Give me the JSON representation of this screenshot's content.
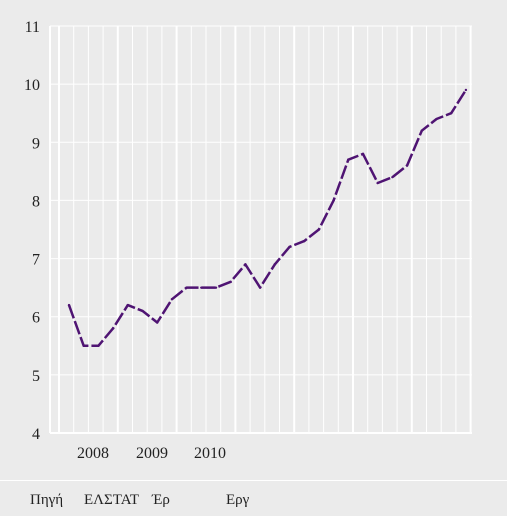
{
  "chart_data": {
    "type": "line",
    "title": "",
    "xlabel": "",
    "ylabel": "",
    "ylim": [
      4,
      11
    ],
    "yticks": [
      4,
      5,
      6,
      7,
      8,
      9,
      10,
      11
    ],
    "year_labels": [
      "2008",
      "2009",
      "2010"
    ],
    "grid": true,
    "line_color": "#4f1473",
    "series": [
      {
        "values": [
          6.2,
          5.5,
          5.5,
          5.8,
          6.2,
          6.1,
          5.9,
          6.3,
          6.5,
          6.5,
          6.5,
          6.6,
          6.9,
          6.5,
          6.9,
          7.2,
          7.3,
          7.5,
          8.0,
          8.7,
          8.8,
          8.3,
          8.4,
          8.6,
          9.2,
          9.4,
          9.5,
          9.9
        ]
      }
    ]
  },
  "source": {
    "label": "Πηγή",
    "org": "ΕΛΣΤΑΤ",
    "text1": "Έρ",
    "text2": "Εργ"
  }
}
